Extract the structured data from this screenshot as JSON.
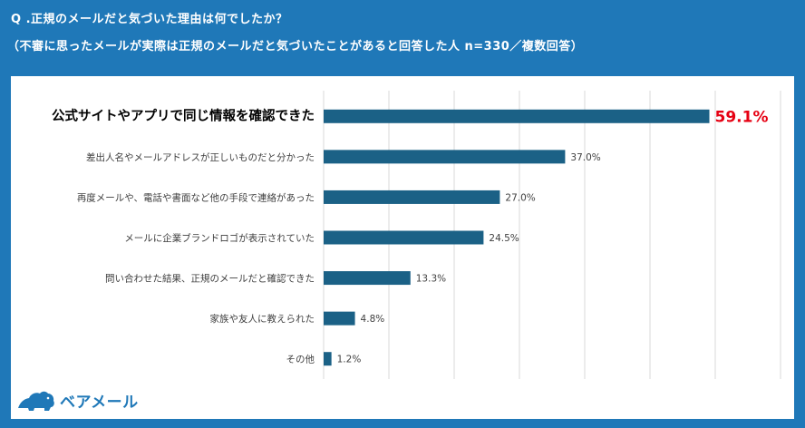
{
  "header": {
    "question": "Q .正規のメールだと気づいた理由は何でしたか？",
    "subtitle": "（不審に思ったメールが実際は正規のメールだと気づいたことがあると回答した人 n=330／複数回答）"
  },
  "brand": {
    "name": "ベアメール",
    "icon": "bear-logo-icon"
  },
  "colors": {
    "background": "#1f78b8",
    "bar": "#1b6186",
    "highlight": "#e60012",
    "grid": "#d9d9d9",
    "text": "#404040"
  },
  "chart_data": {
    "type": "bar",
    "orientation": "horizontal",
    "categories": [
      "公式サイトやアプリで同じ情報を確認できた",
      "差出人名やメールアドレスが正しいものだと分かった",
      "再度メールや、電話や書面など他の手段で連絡があった",
      "メールに企業ブランドロゴが表示されていた",
      "問い合わせた結果、正規のメールだと確認できた",
      "家族や友人に教えられた",
      "その他"
    ],
    "values": [
      59.1,
      37.0,
      27.0,
      24.5,
      13.3,
      4.8,
      1.2
    ],
    "value_labels": [
      "59.1%",
      "37.0%",
      "27.0%",
      "24.5%",
      "13.3%",
      "4.8%",
      "1.2%"
    ],
    "highlight_index": 0,
    "xlim": [
      0,
      70
    ],
    "grid": true
  }
}
